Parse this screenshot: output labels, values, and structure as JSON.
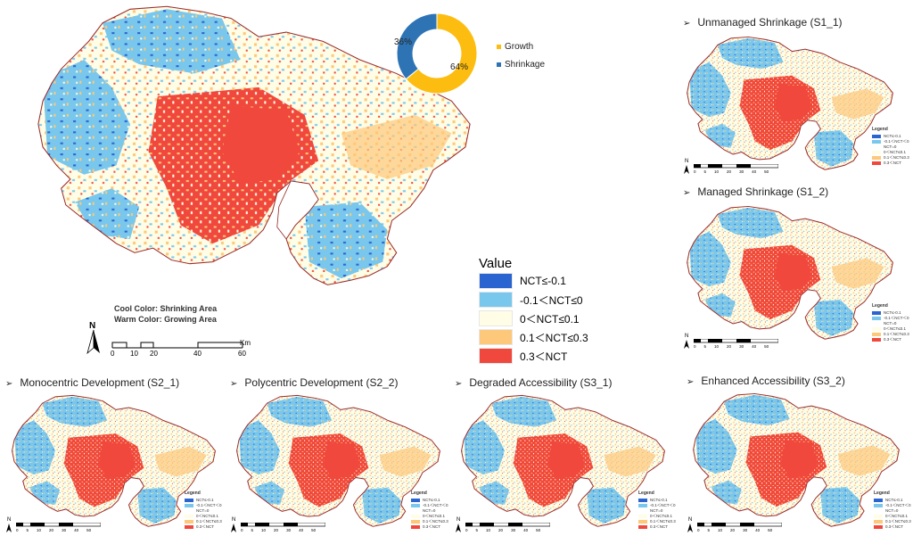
{
  "colors": {
    "strong_shrink": "#2a64d0",
    "shrink": "#79c7ec",
    "stable": "#fffde6",
    "grow": "#fdc879",
    "strong_grow": "#f0483c",
    "growth": "#fdbd10",
    "shrinkage_pie": "#2e74b5",
    "coast": "#9a2a2a"
  },
  "donut": {
    "growth_label": "64%",
    "shrink_label": "36%",
    "growth_fraction": 0.64,
    "shrink_fraction": 0.36,
    "legend": [
      {
        "name": "Growth",
        "color": "#fdbd10"
      },
      {
        "name": "Shrinkage",
        "color": "#2e74b5"
      }
    ]
  },
  "main_legend": {
    "title": "Value",
    "items": [
      {
        "label": "NCT≤-0.1",
        "color": "#2a64d0"
      },
      {
        "label": "-0.1＜NCT≤0",
        "color": "#79c7ec"
      },
      {
        "label": "0＜NCT≤0.1",
        "color": "#fffde6"
      },
      {
        "label": "0.1＜NCT≤0.3",
        "color": "#fdc879"
      },
      {
        "label": "0.3＜NCT",
        "color": "#f0483c"
      }
    ]
  },
  "notes": {
    "cool": "Cool Color: Shrinking Area",
    "warm": "Warm Color: Growing Area"
  },
  "scale_bar": {
    "north": "N",
    "ticks": [
      "0",
      "10",
      "20",
      "40",
      "60"
    ],
    "unit": "Km"
  },
  "scenarios": [
    {
      "title": "Unmanaged Shrinkage (S1_1)",
      "bullet": "➢"
    },
    {
      "title": "Managed Shrinkage (S1_2)",
      "bullet": "➢"
    },
    {
      "title": "Monocentric Development (S2_1)",
      "bullet": "➢"
    },
    {
      "title": "Polycentric Development (S2_2)",
      "bullet": "➢"
    },
    {
      "title": "Degraded Accessibility (S3_1)",
      "bullet": "➢"
    },
    {
      "title": "Enhanced Accessibility (S3_2)",
      "bullet": "➢"
    }
  ],
  "mini_legend": {
    "title": "Legend",
    "items": [
      "NCT≤-0.1",
      "-0.1＜NCT＜0",
      "NCT=0",
      "0＜NCT≤0.1",
      "0.1＜NCT≤0.3",
      "0.3＜NCT"
    ]
  },
  "mini_scale": {
    "north": "N",
    "ticks": [
      "0",
      "5",
      "10",
      "20",
      "30",
      "40",
      "50"
    ]
  }
}
